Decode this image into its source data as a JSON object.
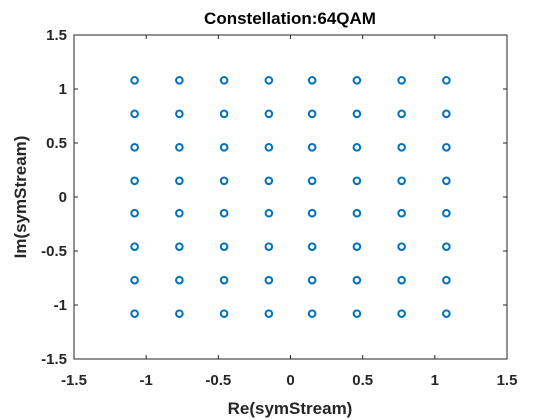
{
  "chart_data": {
    "type": "scatter",
    "title": "Constellation:64QAM",
    "xlabel": "Re(symStream)",
    "ylabel": "Im(symStream)",
    "xlim": [
      -1.5,
      1.5
    ],
    "ylim": [
      -1.5,
      1.5
    ],
    "xticks": [
      -1.5,
      -1,
      -0.5,
      0,
      0.5,
      1,
      1.5
    ],
    "yticks": [
      -1.5,
      -1,
      -0.5,
      0,
      0.5,
      1,
      1.5
    ],
    "xtick_labels": [
      "-1.5",
      "-1",
      "-0.5",
      "0",
      "0.5",
      "1",
      "1.5"
    ],
    "ytick_labels": [
      "-1.5",
      "-1",
      "-0.5",
      "0",
      "0.5",
      "1",
      "1.5"
    ],
    "grid": false,
    "marker": "circle-open",
    "levels": [
      -1.08,
      -0.77,
      -0.46,
      -0.15,
      0.15,
      0.46,
      0.77,
      1.08
    ],
    "points": [
      [
        -1.08,
        1.08
      ],
      [
        -0.77,
        1.08
      ],
      [
        -0.46,
        1.08
      ],
      [
        -0.15,
        1.08
      ],
      [
        0.15,
        1.08
      ],
      [
        0.46,
        1.08
      ],
      [
        0.77,
        1.08
      ],
      [
        1.08,
        1.08
      ],
      [
        -1.08,
        0.77
      ],
      [
        -0.77,
        0.77
      ],
      [
        -0.46,
        0.77
      ],
      [
        -0.15,
        0.77
      ],
      [
        0.15,
        0.77
      ],
      [
        0.46,
        0.77
      ],
      [
        0.77,
        0.77
      ],
      [
        1.08,
        0.77
      ],
      [
        -1.08,
        0.46
      ],
      [
        -0.77,
        0.46
      ],
      [
        -0.46,
        0.46
      ],
      [
        -0.15,
        0.46
      ],
      [
        0.15,
        0.46
      ],
      [
        0.46,
        0.46
      ],
      [
        0.77,
        0.46
      ],
      [
        1.08,
        0.46
      ],
      [
        -1.08,
        0.15
      ],
      [
        -0.77,
        0.15
      ],
      [
        -0.46,
        0.15
      ],
      [
        -0.15,
        0.15
      ],
      [
        0.15,
        0.15
      ],
      [
        0.46,
        0.15
      ],
      [
        0.77,
        0.15
      ],
      [
        1.08,
        0.15
      ],
      [
        -1.08,
        -0.15
      ],
      [
        -0.77,
        -0.15
      ],
      [
        -0.46,
        -0.15
      ],
      [
        -0.15,
        -0.15
      ],
      [
        0.15,
        -0.15
      ],
      [
        0.46,
        -0.15
      ],
      [
        0.77,
        -0.15
      ],
      [
        1.08,
        -0.15
      ],
      [
        -1.08,
        -0.46
      ],
      [
        -0.77,
        -0.46
      ],
      [
        -0.46,
        -0.46
      ],
      [
        -0.15,
        -0.46
      ],
      [
        0.15,
        -0.46
      ],
      [
        0.46,
        -0.46
      ],
      [
        0.77,
        -0.46
      ],
      [
        1.08,
        -0.46
      ],
      [
        -1.08,
        -0.77
      ],
      [
        -0.77,
        -0.77
      ],
      [
        -0.46,
        -0.77
      ],
      [
        -0.15,
        -0.77
      ],
      [
        0.15,
        -0.77
      ],
      [
        0.46,
        -0.77
      ],
      [
        0.77,
        -0.77
      ],
      [
        1.08,
        -0.77
      ],
      [
        -1.08,
        -1.08
      ],
      [
        -0.77,
        -1.08
      ],
      [
        -0.46,
        -1.08
      ],
      [
        -0.15,
        -1.08
      ],
      [
        0.15,
        -1.08
      ],
      [
        0.46,
        -1.08
      ],
      [
        0.77,
        -1.08
      ],
      [
        1.08,
        -1.08
      ]
    ]
  },
  "colors": {
    "marker": "#0072bd",
    "axes": "#262626",
    "background": "#ffffff"
  }
}
